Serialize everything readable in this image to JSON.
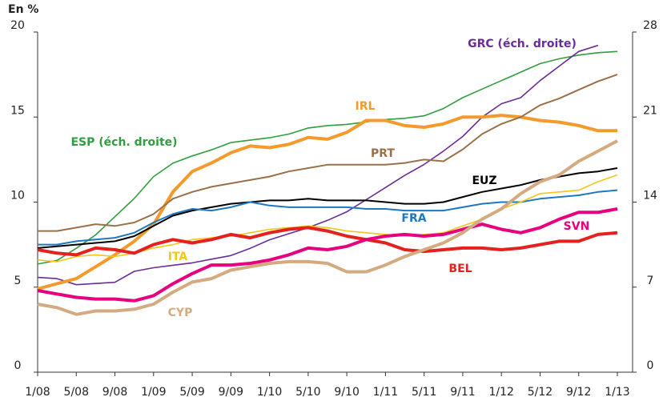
{
  "chart_data": {
    "type": "line",
    "y_label": "En %",
    "categories": [
      "1/08",
      null,
      "5/08",
      null,
      "9/08",
      null,
      "1/09",
      null,
      "5/09",
      null,
      "9/09",
      null,
      "1/10",
      null,
      "5/10",
      null,
      "9/10",
      null,
      "1/11",
      null,
      "5/11",
      null,
      "9/11",
      null,
      "1/12",
      null,
      "5/12",
      null,
      "9/12",
      null,
      "1/13"
    ],
    "ylim": [
      0,
      20
    ],
    "yticks": [
      0,
      5,
      10,
      15,
      20
    ],
    "y2lim": [
      0,
      28
    ],
    "y2ticks": [
      0,
      7,
      14,
      21,
      28
    ],
    "series": [
      {
        "name": "ESP (éch. droite)",
        "color": "#2e9e3e",
        "axis": "y2",
        "values": [
          8.9,
          9.2,
          10.2,
          11.3,
          12.8,
          14.3,
          16.1,
          17.2,
          17.8,
          18.3,
          18.9,
          19.1,
          19.3,
          19.6,
          20.1,
          20.3,
          20.4,
          20.6,
          20.8,
          20.9,
          21.1,
          21.7,
          22.6,
          23.3,
          24.0,
          24.7,
          25.4,
          25.8,
          26.1,
          26.3,
          26.4
        ]
      },
      {
        "name": "GRC (éch. droite)",
        "color": "#6a2c9a",
        "axis": "y2",
        "values": [
          7.8,
          7.7,
          7.2,
          7.3,
          7.4,
          8.3,
          8.6,
          8.8,
          9.0,
          9.3,
          9.6,
          10.2,
          10.9,
          11.4,
          11.9,
          12.5,
          13.2,
          14.2,
          15.2,
          16.2,
          17.1,
          18.2,
          19.4,
          21.0,
          22.1,
          22.6,
          24.0,
          25.2,
          26.4,
          26.9,
          null
        ]
      },
      {
        "name": "IRL",
        "color": "#f39a2b",
        "values": [
          4.9,
          5.2,
          5.5,
          6.2,
          6.9,
          7.7,
          8.7,
          10.6,
          11.8,
          12.3,
          12.9,
          13.3,
          13.2,
          13.4,
          13.8,
          13.7,
          14.1,
          14.8,
          14.8,
          14.5,
          14.4,
          14.6,
          15.0,
          15.0,
          15.1,
          15.0,
          14.8,
          14.7,
          14.5,
          14.2,
          14.2
        ]
      },
      {
        "name": "PRT",
        "color": "#9b7048",
        "values": [
          8.3,
          8.3,
          8.5,
          8.7,
          8.6,
          8.8,
          9.3,
          10.2,
          10.6,
          10.9,
          11.1,
          11.3,
          11.5,
          11.8,
          12.0,
          12.2,
          12.2,
          12.2,
          12.2,
          12.3,
          12.5,
          12.4,
          13.1,
          14.0,
          14.6,
          15.0,
          15.7,
          16.1,
          16.6,
          17.1,
          17.5
        ]
      },
      {
        "name": "EUZ",
        "color": "#000000",
        "values": [
          7.3,
          7.4,
          7.5,
          7.6,
          7.7,
          8.0,
          8.6,
          9.2,
          9.5,
          9.7,
          9.9,
          10.0,
          10.1,
          10.1,
          10.2,
          10.1,
          10.1,
          10.1,
          10.0,
          9.9,
          9.9,
          10.0,
          10.3,
          10.6,
          10.8,
          11.0,
          11.3,
          11.5,
          11.7,
          11.8,
          12.0
        ]
      },
      {
        "name": "FRA",
        "color": "#1e78c0",
        "values": [
          7.5,
          7.5,
          7.7,
          7.8,
          7.9,
          8.2,
          8.8,
          9.3,
          9.6,
          9.5,
          9.7,
          10.0,
          9.8,
          9.7,
          9.7,
          9.7,
          9.7,
          9.6,
          9.6,
          9.5,
          9.5,
          9.5,
          9.7,
          9.9,
          10.0,
          10.0,
          10.2,
          10.3,
          10.4,
          10.6,
          10.7
        ]
      },
      {
        "name": "ITA",
        "color": "#f5c518",
        "values": [
          6.6,
          6.5,
          6.8,
          6.9,
          6.8,
          7.0,
          7.3,
          7.5,
          7.8,
          7.9,
          8.0,
          8.2,
          8.4,
          8.5,
          8.6,
          8.5,
          8.3,
          8.2,
          8.1,
          8.0,
          8.1,
          8.2,
          8.6,
          9.0,
          9.6,
          10.0,
          10.5,
          10.6,
          10.7,
          11.2,
          11.6
        ]
      },
      {
        "name": "BEL",
        "color": "#e3221f",
        "values": [
          7.2,
          7.0,
          6.9,
          7.3,
          7.2,
          7.0,
          7.5,
          7.8,
          7.6,
          7.8,
          8.1,
          7.9,
          8.2,
          8.4,
          8.5,
          8.3,
          8.0,
          7.8,
          7.6,
          7.2,
          7.1,
          7.2,
          7.3,
          7.3,
          7.2,
          7.3,
          7.5,
          7.7,
          7.7,
          8.1,
          8.2
        ]
      },
      {
        "name": "SVN",
        "color": "#e6007e",
        "values": [
          4.8,
          4.6,
          4.4,
          4.3,
          4.3,
          4.2,
          4.5,
          5.2,
          5.8,
          6.3,
          6.3,
          6.4,
          6.6,
          6.9,
          7.3,
          7.2,
          7.4,
          7.8,
          8.0,
          8.1,
          8.0,
          8.1,
          8.4,
          8.7,
          8.4,
          8.2,
          8.5,
          9.0,
          9.4,
          9.4,
          9.6
        ]
      },
      {
        "name": "CYP",
        "color": "#d4aa80",
        "values": [
          4.0,
          3.8,
          3.4,
          3.6,
          3.6,
          3.7,
          4.0,
          4.7,
          5.3,
          5.5,
          6.0,
          6.2,
          6.4,
          6.5,
          6.5,
          6.4,
          5.9,
          5.9,
          6.3,
          6.8,
          7.2,
          7.6,
          8.2,
          9.0,
          9.6,
          10.5,
          11.2,
          11.6,
          12.4,
          13.0,
          13.6
        ]
      }
    ]
  }
}
